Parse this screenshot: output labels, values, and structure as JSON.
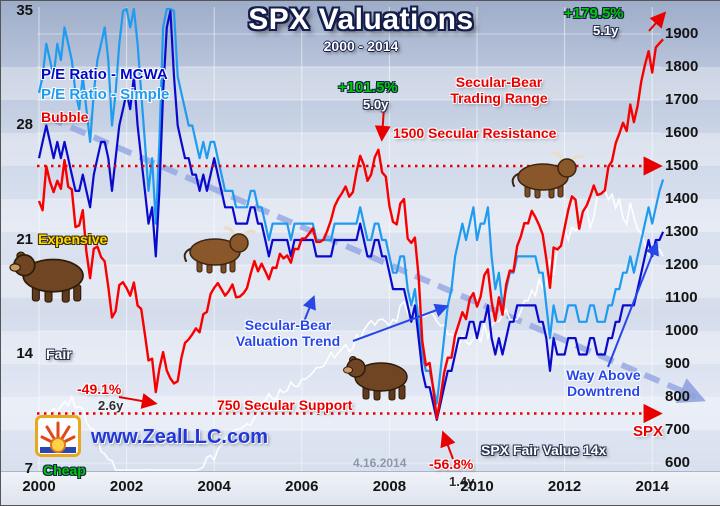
{
  "title": "SPX Valuations",
  "subtitle": "2000 - 2014",
  "legend": {
    "mcwa": "P/E Ratio - MCWA",
    "simple": "P/E Ratio - Simple"
  },
  "zones": {
    "bubble": "Bubble",
    "expensive": "Expensive",
    "fair": "Fair",
    "cheap": "Cheap"
  },
  "annotations": {
    "gain_2014": {
      "pct": "+179.5%",
      "years": "5.1y"
    },
    "gain_2007": {
      "pct": "+101.5%",
      "years": "5.0y"
    },
    "loss_2002": {
      "pct": "-49.1%",
      "years": "2.6y"
    },
    "loss_2009": {
      "pct": "-56.8%",
      "years": "1.4y"
    },
    "trading_range_1": "Secular-Bear",
    "trading_range_2": "Trading Range",
    "resistance": "1500 Secular Resistance",
    "support": "750 Secular Support",
    "valuation_trend_1": "Secular-Bear",
    "valuation_trend_2": "Valuation Trend",
    "way_above_1": "Way Above",
    "way_above_2": "Downtrend",
    "date": "4.16.2014",
    "spx": "SPX",
    "fair_value": "SPX Fair Value 14x",
    "website": "www.ZealLLC.com"
  },
  "colors": {
    "spx": "#f80000",
    "pe_mcwa": "#0a0acc",
    "pe_simple": "#1f9bf0",
    "fair_value": "#ffffff",
    "trend_dash": "#93a5e2",
    "reference": "#e80000",
    "gain_green": "#00ca00",
    "expensive_yellow": "#ffd800"
  },
  "chart_data": {
    "type": "line",
    "title": "SPX Valuations",
    "subtitle": "2000 - 2014",
    "x_start_year": 2000,
    "x_step_months": 1,
    "x_end": "2014-04",
    "x_ticks": [
      2000,
      2002,
      2004,
      2006,
      2008,
      2010,
      2012,
      2014
    ],
    "left_axis": {
      "label": "P/E Ratio",
      "ticks": [
        35,
        28,
        21,
        14,
        7
      ],
      "range": [
        7,
        35
      ]
    },
    "right_axis": {
      "label": "SPX",
      "ticks": [
        1900,
        1800,
        1700,
        1600,
        1500,
        1400,
        1300,
        1200,
        1100,
        1000,
        900,
        800,
        700,
        600
      ],
      "range": [
        600,
        1900
      ]
    },
    "reference_lines": [
      {
        "axis": "right",
        "value": 1500,
        "label": "1500 Secular Resistance"
      },
      {
        "axis": "right",
        "value": 750,
        "label": "750 Secular Support"
      }
    ],
    "trend_line": {
      "axis": "left",
      "x": [
        2000.2,
        2015.0
      ],
      "y": [
        28.5,
        11.4
      ],
      "label": "Secular-Bear Valuation Trend"
    },
    "series": [
      {
        "name": "SPX",
        "axis": "right",
        "color": "#f80000",
        "values": [
          1394,
          1366,
          1499,
          1452,
          1421,
          1455,
          1431,
          1518,
          1437,
          1429,
          1315,
          1320,
          1366,
          1240,
          1160,
          1249,
          1256,
          1224,
          1211,
          1134,
          1041,
          1060,
          1139,
          1148,
          1130,
          1107,
          1147,
          1077,
          1067,
          990,
          911,
          916,
          815,
          886,
          936,
          880,
          856,
          841,
          848,
          917,
          964,
          975,
          990,
          1008,
          996,
          1051,
          1058,
          1112,
          1131,
          1145,
          1126,
          1107,
          1121,
          1141,
          1102,
          1104,
          1114,
          1130,
          1174,
          1212,
          1181,
          1204,
          1181,
          1157,
          1192,
          1191,
          1234,
          1220,
          1229,
          1207,
          1249,
          1248,
          1280,
          1281,
          1295,
          1311,
          1270,
          1270,
          1277,
          1304,
          1336,
          1378,
          1401,
          1418,
          1438,
          1407,
          1421,
          1482,
          1531,
          1503,
          1455,
          1474,
          1527,
          1549,
          1481,
          1468,
          1379,
          1331,
          1323,
          1386,
          1400,
          1280,
          1267,
          1283,
          1166,
          969,
          896,
          903,
          826,
          735,
          798,
          873,
          919,
          919,
          987,
          1021,
          1057,
          1036,
          1096,
          1115,
          1074,
          1104,
          1169,
          1187,
          1089,
          1031,
          1102,
          1049,
          1141,
          1183,
          1181,
          1258,
          1286,
          1327,
          1326,
          1364,
          1345,
          1321,
          1292,
          1219,
          1131,
          1253,
          1247,
          1258,
          1312,
          1366,
          1408,
          1398,
          1310,
          1362,
          1379,
          1407,
          1441,
          1412,
          1416,
          1426,
          1498,
          1515,
          1569,
          1598,
          1631,
          1606,
          1686,
          1633,
          1682,
          1757,
          1806,
          1848,
          1783,
          1859,
          1872,
          1884
        ]
      },
      {
        "name": "P/E Ratio - MCWA",
        "axis": "left",
        "color": "#0a0acc",
        "values": [
          26,
          27,
          28,
          27,
          26,
          27,
          26,
          27,
          26,
          25,
          24,
          24,
          25,
          24,
          23,
          25,
          26,
          27,
          27,
          26,
          24,
          26,
          28,
          29,
          30,
          29,
          31,
          28,
          26,
          24,
          22,
          23,
          20,
          24,
          30,
          34,
          35,
          31,
          28,
          27,
          26,
          26,
          25,
          25,
          24,
          25,
          24,
          25,
          26,
          25,
          24,
          23,
          23,
          23,
          22,
          22,
          22,
          22,
          23,
          23,
          22,
          22,
          21,
          20,
          21,
          21,
          21,
          21,
          21,
          20,
          21,
          21,
          21,
          21,
          21,
          21,
          20,
          20,
          20,
          20,
          20,
          21,
          21,
          21,
          21,
          21,
          21,
          21,
          22,
          21,
          20,
          20,
          21,
          21,
          20,
          20,
          19,
          18,
          18,
          18,
          18,
          17,
          16,
          17,
          15,
          13,
          12,
          12,
          11,
          10,
          11,
          12,
          13,
          13,
          14,
          15,
          15,
          15,
          16,
          16,
          15,
          16,
          16,
          17,
          15,
          14,
          15,
          14,
          15,
          16,
          16,
          17,
          17,
          17,
          17,
          17,
          17,
          16,
          16,
          15,
          13,
          15,
          14,
          14,
          14,
          15,
          15,
          15,
          14,
          14,
          14,
          15,
          15,
          14,
          14,
          14,
          15,
          15,
          16,
          16,
          17,
          17,
          17,
          17,
          18,
          19,
          20,
          21,
          20,
          21,
          21,
          21.5
        ]
      },
      {
        "name": "P/E Ratio - Simple",
        "axis": "left",
        "color": "#1f9bf0",
        "values": [
          30,
          31,
          33,
          32,
          31,
          33,
          32,
          34,
          33,
          32,
          30,
          29,
          31,
          29,
          27,
          30,
          32,
          33,
          34,
          32,
          28,
          30,
          33,
          35,
          36,
          34,
          36,
          33,
          30,
          27,
          24,
          26,
          22,
          27,
          34,
          38,
          39,
          35,
          31,
          30,
          29,
          28,
          28,
          27,
          26,
          27,
          26,
          27,
          27,
          26,
          25,
          24,
          24,
          24,
          23,
          23,
          23,
          23,
          24,
          24,
          23,
          23,
          22,
          21,
          22,
          22,
          22,
          22,
          22,
          21,
          22,
          22,
          22,
          22,
          22,
          22,
          21,
          21,
          21,
          21,
          21,
          22,
          22,
          22,
          22,
          22,
          22,
          22,
          23,
          22,
          21,
          21,
          22,
          22,
          21,
          21,
          20,
          19,
          19,
          20,
          20,
          18,
          17,
          18,
          16,
          14,
          13,
          13,
          12,
          11,
          13,
          15,
          17,
          18,
          20,
          21,
          22,
          21,
          22,
          23,
          21,
          22,
          22,
          23,
          20,
          18,
          19,
          17,
          18,
          19,
          19,
          20,
          20,
          20,
          20,
          20,
          20,
          19,
          19,
          17,
          15,
          17,
          16,
          16,
          16,
          17,
          17,
          17,
          16,
          16,
          16,
          17,
          17,
          16,
          16,
          16,
          17,
          17,
          18,
          18,
          19,
          19,
          20,
          19,
          20,
          21,
          22,
          23,
          22,
          23,
          24,
          24.7
        ]
      },
      {
        "name": "SPX Fair Value 14x",
        "axis": "right",
        "color": "#ffffff",
        "derived": "SPX * 14 / P/E Ratio - MCWA",
        "fair_value_multiple": 14
      }
    ]
  }
}
